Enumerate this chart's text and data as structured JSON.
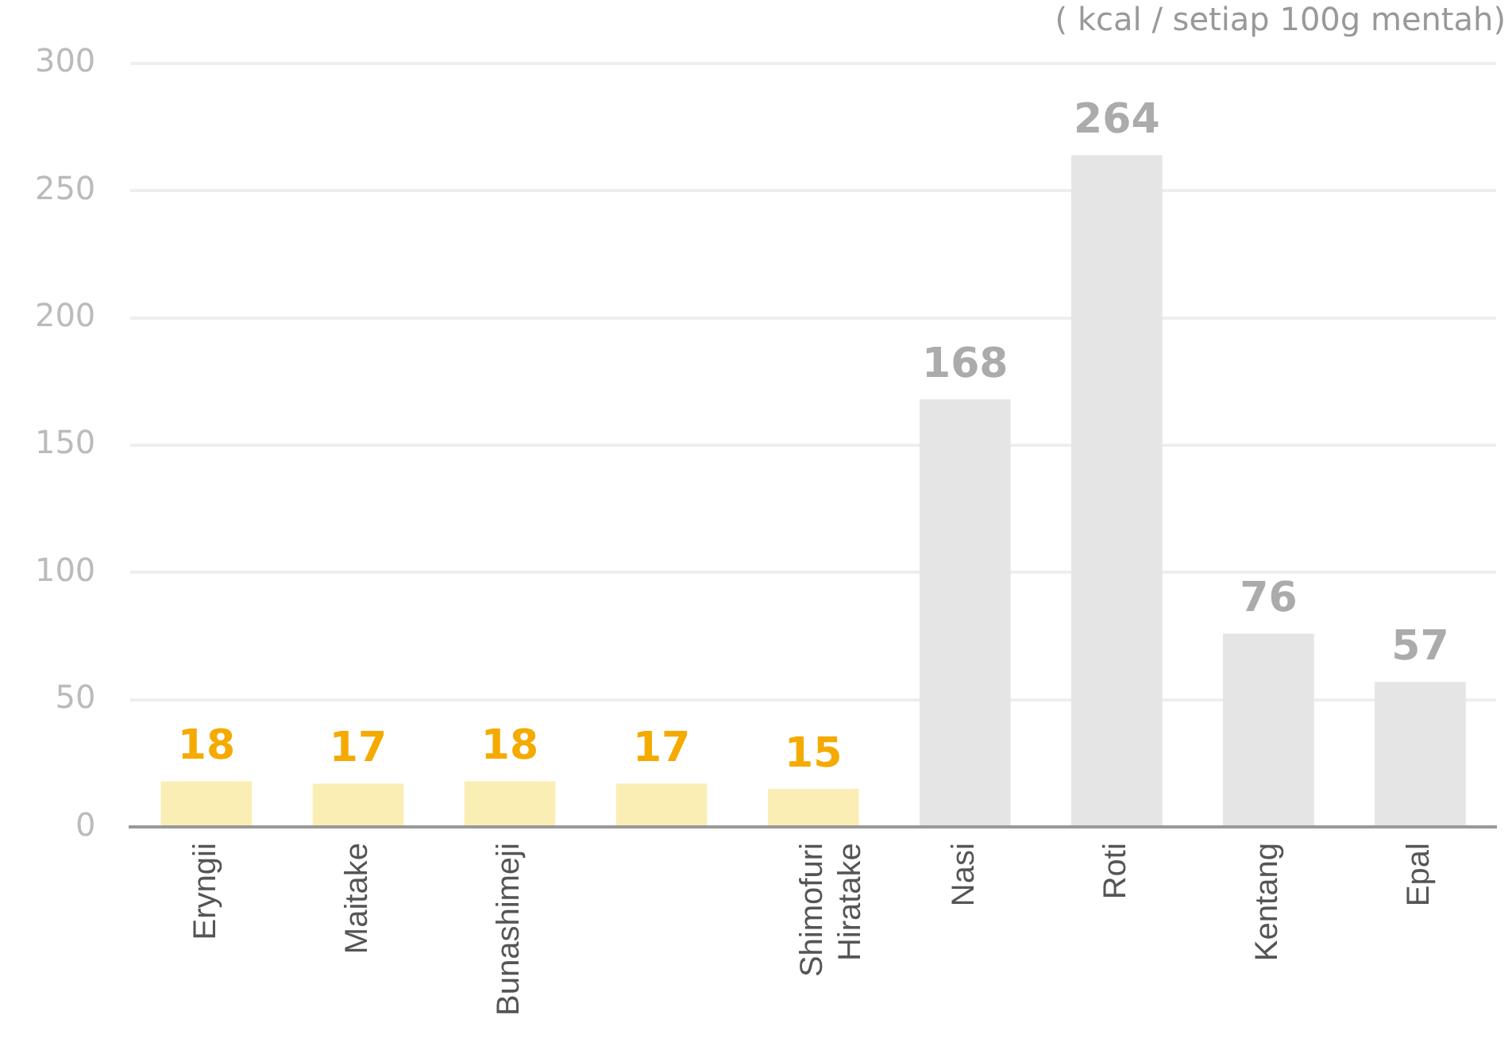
{
  "chart_data": {
    "type": "bar",
    "ylabel": "( kcal / setiap 100g mentah)",
    "categories": [
      "Eryngii",
      "Maitake",
      "Bunashimeji",
      null,
      "Shimofuri Hiratake",
      "Nasi",
      "Roti",
      "Kentang",
      "Epal"
    ],
    "values": [
      18,
      17,
      18,
      17,
      15,
      168,
      264,
      76,
      57
    ],
    "colors": [
      "#faeeb4",
      "#faeeb4",
      "#faeeb4",
      "#faeeb4",
      "#faeeb4",
      "#e5e5e5",
      "#e5e5e5",
      "#e5e5e5",
      "#e5e5e5"
    ],
    "ylim": [
      0,
      300
    ],
    "yticks": [
      0,
      50,
      100,
      150,
      200,
      250,
      300
    ],
    "grid": "y",
    "data_labels": true
  }
}
